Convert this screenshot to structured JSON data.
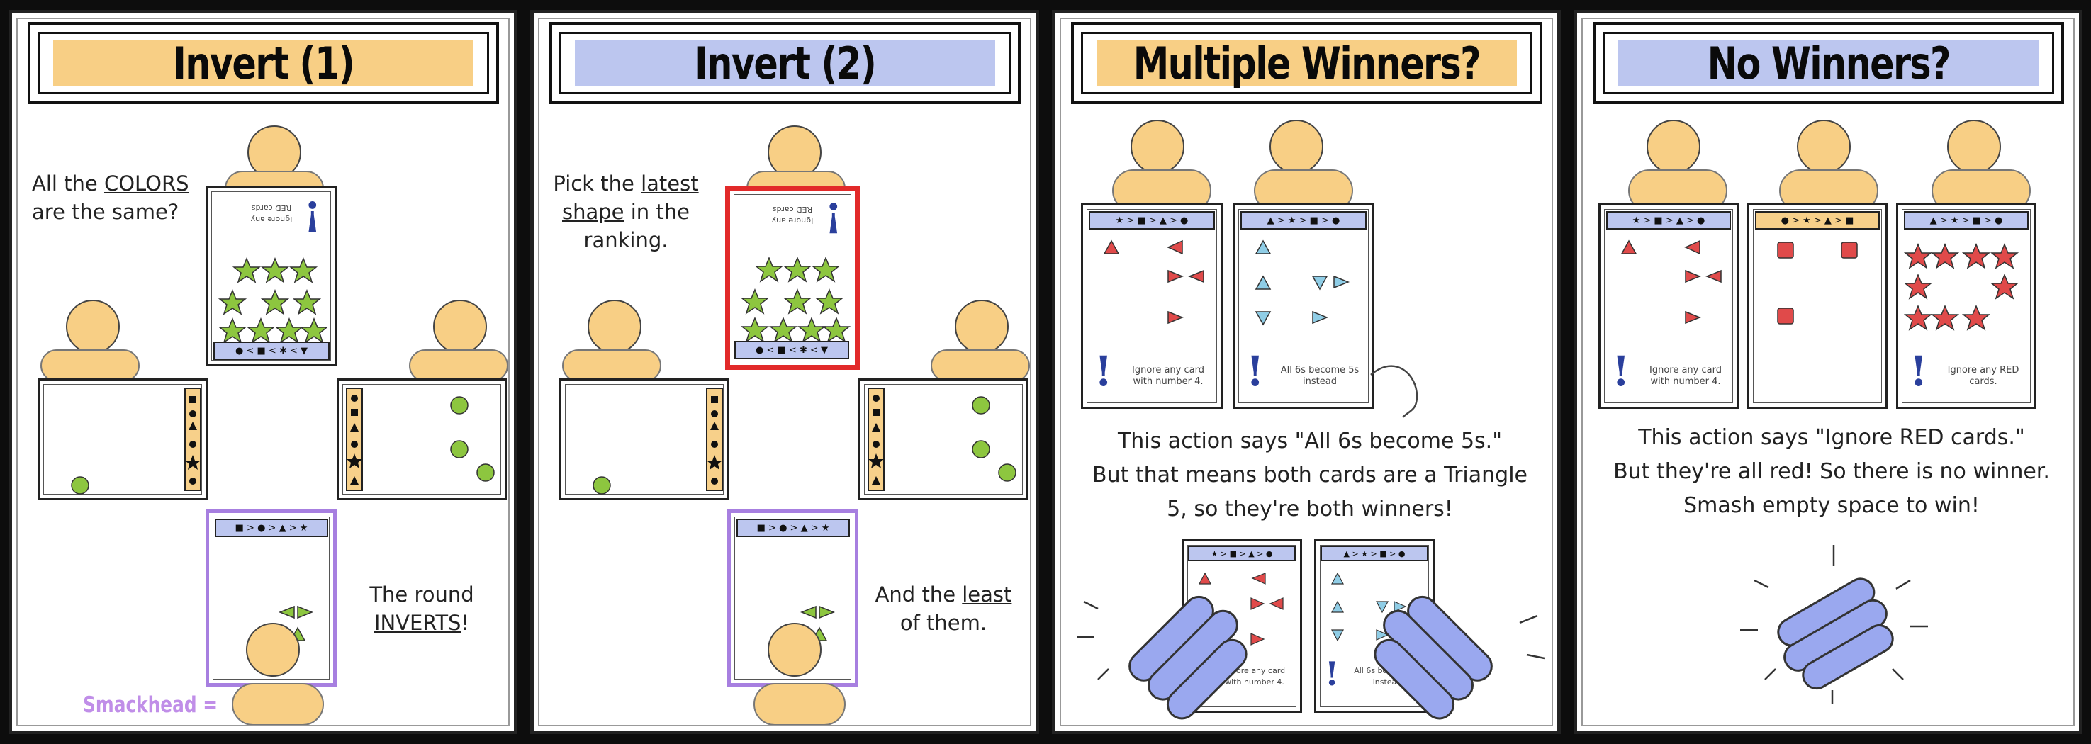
{
  "panels": [
    {
      "title": "Invert (1)",
      "title_color": "#f8cf85",
      "question": [
        "All the ",
        "COLORS",
        "are the same?"
      ],
      "aside": [
        "The round",
        "INVERTS",
        "!"
      ],
      "smackhead_label": "Smackhead =",
      "top_card_note": "Ignore any RED cards",
      "ranking_bottom": "● < ■ < ✱ < ▼",
      "ranking_player": "■ > ● > ▲ > ★"
    },
    {
      "title": "Invert (2)",
      "title_color": "#bcc6ef",
      "question": [
        "Pick the ",
        "latest",
        "shape",
        " in the",
        "ranking."
      ],
      "aside": [
        "And the ",
        "least",
        "of them."
      ],
      "top_card_note": "Ignore any RED cards",
      "ranking_bottom": "● < ■ < ✱ < ▼",
      "ranking_player": "■ > ● > ▲ > ★"
    },
    {
      "title": "Multiple Winners?",
      "title_color": "#f8cf85",
      "card_notes": [
        "Ignore any card with number 4.",
        "All 6s become 5s instead"
      ],
      "ranking_left": "★ > ■ > ▲ > ●",
      "ranking_right": "▲ > ★ > ■ > ●",
      "explanation": [
        "This action says \"All 6s become 5s.\"",
        "But that means both cards are a Triangle",
        "5, so they're both winners!"
      ]
    },
    {
      "title": "No Winners?",
      "title_color": "#bcc6ef",
      "card_notes": [
        "Ignore any card with number 4.",
        "Ignore any RED cards."
      ],
      "ranking_left": "★ > ■ > ▲ > ●",
      "ranking_mid": "● > ★ > ▲ > ■",
      "ranking_right": "▲ > ★ > ■ > ●",
      "explanation": [
        "This action says \"Ignore RED cards.\"",
        "But they're all red! So there is no winner.",
        "Smash empty space to win!"
      ]
    }
  ],
  "colors": {
    "orange": "#f8cf85",
    "blue": "#bcc6ef",
    "green": "#8dc63f",
    "red": "#e04a4a",
    "teal": "#8fcde6",
    "purple": "#a77fe0",
    "red_border": "#e22a2a",
    "hand_blue": "#9aa8ef"
  },
  "icons": [
    "person-icon",
    "green-circle-icon",
    "green-star-icon",
    "red-triangle-icon",
    "cyan-triangle-icon",
    "red-square-icon",
    "red-star-icon",
    "exclamation-icon",
    "smash-hand-icon"
  ]
}
